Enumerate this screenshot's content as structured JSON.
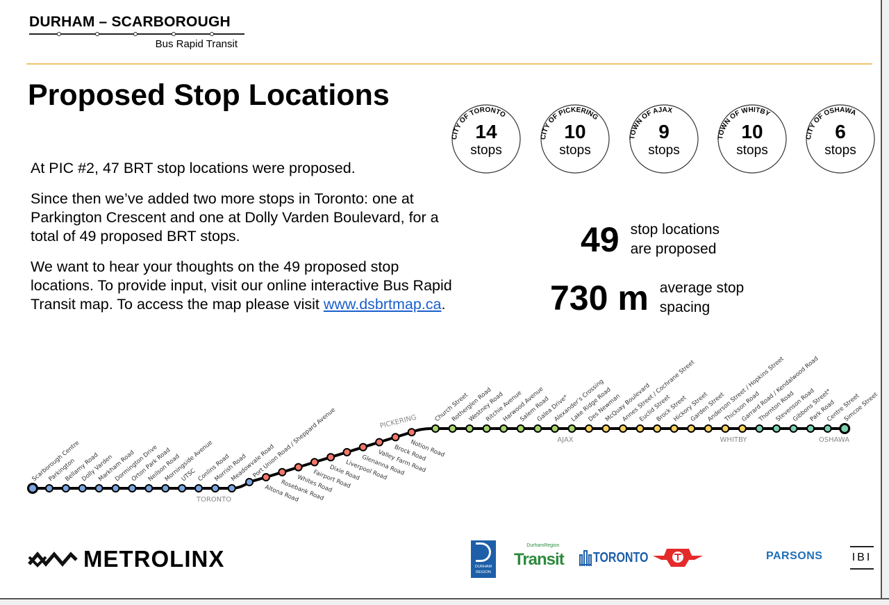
{
  "header": {
    "brand_title": "DURHAM – SCARBOROUGH",
    "brand_subtitle": "Bus Rapid Transit"
  },
  "title": "Proposed Stop Locations",
  "body": {
    "p1": "At PIC #2, 47 BRT stop locations were proposed.",
    "p2": "Since then we’ve added two more stops in Toronto: one at Parkington Crescent and one at Dolly Varden Boulevard, for a total of 49 proposed BRT stops.",
    "p3_pre": "We want to hear your thoughts on the 49 proposed stop locations. To provide input, visit our online interactive Bus Rapid Transit map. To access the map please visit ",
    "link": "www.dsbrtmap.ca",
    "p3_post": "."
  },
  "municipalities": [
    {
      "name": "CITY OF TORONTO",
      "count": "14",
      "unit": "stops"
    },
    {
      "name": "CITY OF PICKERING",
      "count": "10",
      "unit": "stops"
    },
    {
      "name": "TOWN OF AJAX",
      "count": "9",
      "unit": "stops"
    },
    {
      "name": "TOWN OF WHITBY",
      "count": "10",
      "unit": "stops"
    },
    {
      "name": "CITY OF OSHAWA",
      "count": "6",
      "unit": "stops"
    }
  ],
  "stats": [
    {
      "value": "49",
      "label": "stop locations\nare proposed"
    },
    {
      "value": "730 m",
      "label": "average stop\nspacing"
    }
  ],
  "region_colors": {
    "TORONTO": "#7aa7e0",
    "PICKERING": "#f4776a",
    "AJAX": "#a6d46e",
    "WHITBY": "#f7d15f",
    "OSHAWA": "#7fd0b0"
  },
  "region_labels": [
    "TORONTO",
    "PICKERING",
    "AJAX",
    "WHITBY",
    "OSHAWA"
  ],
  "stops": [
    {
      "name": "Scarborough Centre",
      "region": "TORONTO"
    },
    {
      "name": "Parkington",
      "region": "TORONTO"
    },
    {
      "name": "Bellamy Road",
      "region": "TORONTO"
    },
    {
      "name": "Dolly Varden",
      "region": "TORONTO"
    },
    {
      "name": "Markham Road",
      "region": "TORONTO"
    },
    {
      "name": "Dormington Drive",
      "region": "TORONTO"
    },
    {
      "name": "Orton Park Road",
      "region": "TORONTO"
    },
    {
      "name": "Neilson Road",
      "region": "TORONTO"
    },
    {
      "name": "Morningside Avenue",
      "region": "TORONTO"
    },
    {
      "name": "UTSC",
      "region": "TORONTO"
    },
    {
      "name": "Conlins Road",
      "region": "TORONTO"
    },
    {
      "name": "Morrish Road",
      "region": "TORONTO"
    },
    {
      "name": "Meadowvale Road",
      "region": "TORONTO"
    },
    {
      "name": "Port Union Road / Sheppard Avenue",
      "region": "TORONTO"
    },
    {
      "name": "Altona Road",
      "region": "PICKERING"
    },
    {
      "name": "Rosebank Road",
      "region": "PICKERING"
    },
    {
      "name": "Whites Road",
      "region": "PICKERING"
    },
    {
      "name": "Fairport Road",
      "region": "PICKERING"
    },
    {
      "name": "Dixie Road",
      "region": "PICKERING"
    },
    {
      "name": "Liverpool Road",
      "region": "PICKERING"
    },
    {
      "name": "Glenanna Road",
      "region": "PICKERING"
    },
    {
      "name": "Valley Farm Road",
      "region": "PICKERING"
    },
    {
      "name": "Brock Road",
      "region": "PICKERING"
    },
    {
      "name": "Notion Road",
      "region": "PICKERING"
    },
    {
      "name": "Church Street",
      "region": "AJAX"
    },
    {
      "name": "Rotherglen Road",
      "region": "AJAX"
    },
    {
      "name": "Westney Road",
      "region": "AJAX"
    },
    {
      "name": "Ritchie Avenue",
      "region": "AJAX"
    },
    {
      "name": "Harwood Avenue",
      "region": "AJAX"
    },
    {
      "name": "Salem Road",
      "region": "AJAX"
    },
    {
      "name": "Galea Drive*",
      "region": "AJAX"
    },
    {
      "name": "Alexander’s Crossing",
      "region": "AJAX"
    },
    {
      "name": "Lake Ridge Road",
      "region": "AJAX"
    },
    {
      "name": "Des Newman",
      "region": "WHITBY"
    },
    {
      "name": "McQuay Boulevard",
      "region": "WHITBY"
    },
    {
      "name": "Annes Street / Cochrane Street",
      "region": "WHITBY"
    },
    {
      "name": "Euclid Street",
      "region": "WHITBY"
    },
    {
      "name": "Brock Street",
      "region": "WHITBY"
    },
    {
      "name": "Hickory Street",
      "region": "WHITBY"
    },
    {
      "name": "Garden Street",
      "region": "WHITBY"
    },
    {
      "name": "Anderson Street / Hopkins Street",
      "region": "WHITBY"
    },
    {
      "name": "Thickson Road",
      "region": "WHITBY"
    },
    {
      "name": "Garrard Road / Kendalwood Road",
      "region": "WHITBY"
    },
    {
      "name": "Thornton Road",
      "region": "OSHAWA"
    },
    {
      "name": "Stevenson Road",
      "region": "OSHAWA"
    },
    {
      "name": "Gibbons Street*",
      "region": "OSHAWA"
    },
    {
      "name": "Park Road",
      "region": "OSHAWA"
    },
    {
      "name": "Centre Street",
      "region": "OSHAWA"
    },
    {
      "name": "Simcoe Street",
      "region": "OSHAWA"
    }
  ],
  "footer": {
    "metrolinx": "METROLINX",
    "durham_region": "DURHAM REGION",
    "drt_top": "DurhamRegion",
    "drt": "Transit",
    "toronto": "TORONTO",
    "parsons": "PARSONS",
    "ibi": "IBI"
  }
}
